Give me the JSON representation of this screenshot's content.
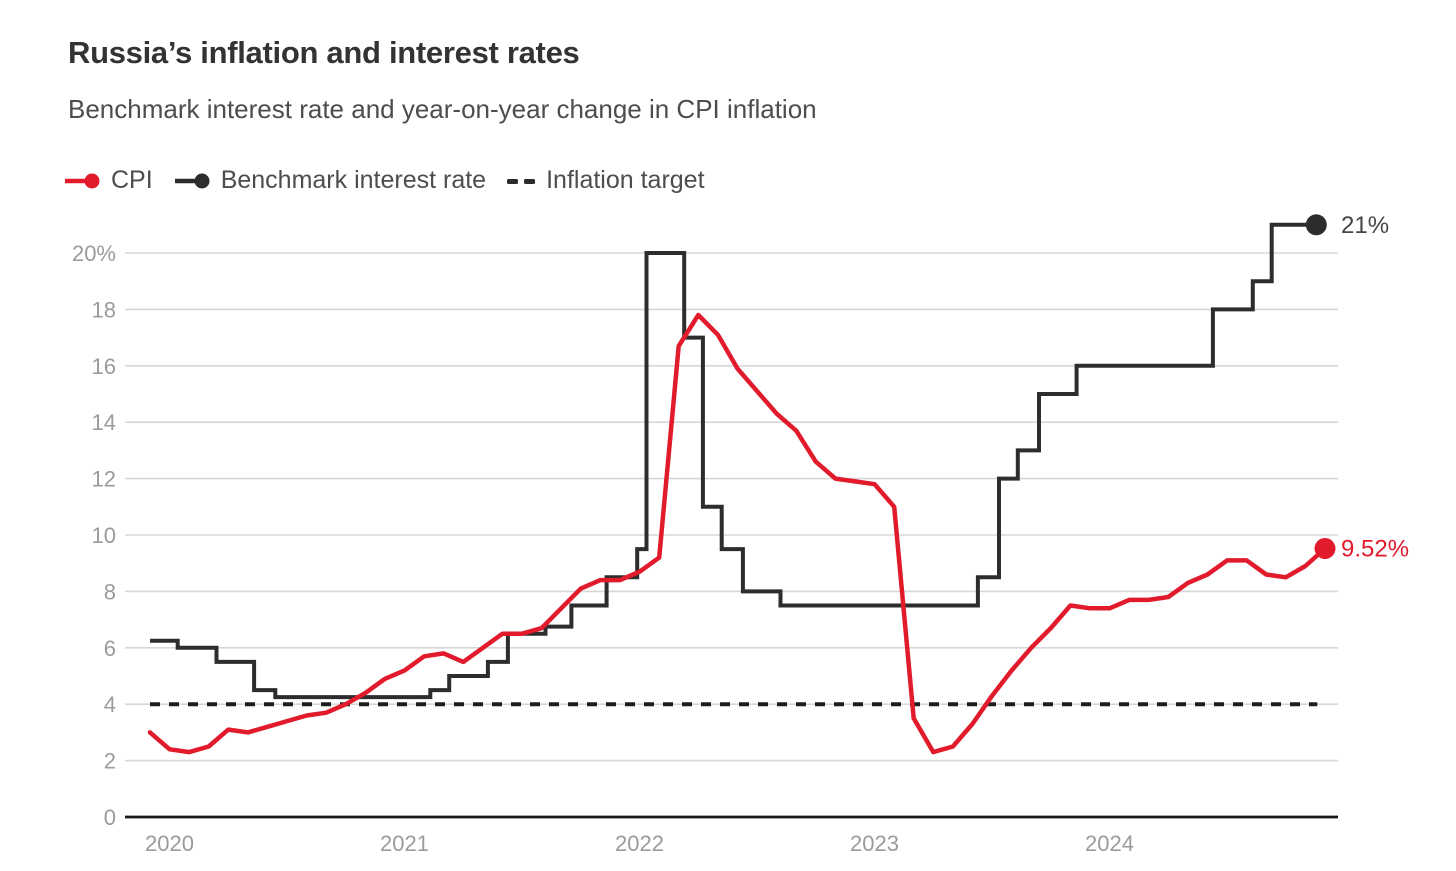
{
  "header": {
    "title": "Russia’s inflation and interest rates",
    "subtitle": "Benchmark interest rate and year-on-year change in CPI inflation"
  },
  "legend": [
    {
      "label": "CPI",
      "color": "#e11b2c",
      "style": "line-dot"
    },
    {
      "label": "Benchmark interest rate",
      "color": "#2d2d2d",
      "style": "line-dot"
    },
    {
      "label": "Inflation target",
      "color": "#2b2b2b",
      "style": "dashed"
    }
  ],
  "colors": {
    "cpi_red": "#e11b2c",
    "benchmark_black": "#2d2d2d",
    "grid": "#d7d7d7",
    "axis": "#161616",
    "tick_text": "#9b9b9b",
    "end_label_dark": "#454545"
  },
  "chart_data": {
    "type": "line",
    "title": "Russia’s inflation and interest rates",
    "subtitle": "Benchmark interest rate and year-on-year change in CPI inflation",
    "x_axis": {
      "ticks": [
        2020,
        2021,
        2022,
        2023,
        2024
      ],
      "range_decimal_years": [
        2019.9,
        2025.1
      ],
      "grid": false
    },
    "y_axis": {
      "unit": "%",
      "tick_values": [
        20,
        18,
        16,
        14,
        12,
        10,
        8,
        6,
        4,
        2,
        0
      ],
      "tick_labels": [
        "20%",
        "18",
        "16",
        "14",
        "12",
        "10",
        "8",
        "6",
        "4",
        "2",
        "0"
      ],
      "range": [
        0,
        21.5
      ],
      "grid": true
    },
    "legend_position": "top-left",
    "series": [
      {
        "name": "CPI",
        "type": "line",
        "color": "#e11b2c",
        "start_decimal_year": 2019.917,
        "interval_months": 1,
        "values": [
          3.0,
          2.4,
          2.3,
          2.5,
          3.1,
          3.0,
          3.2,
          3.4,
          3.6,
          3.7,
          4.0,
          4.4,
          4.9,
          5.2,
          5.7,
          5.8,
          5.5,
          6.0,
          6.5,
          6.5,
          6.7,
          7.4,
          8.1,
          8.4,
          8.4,
          8.7,
          9.2,
          16.7,
          17.8,
          17.1,
          15.9,
          15.1,
          14.3,
          13.7,
          12.6,
          12.0,
          11.9,
          11.8,
          11.0,
          3.5,
          2.3,
          2.5,
          3.3,
          4.3,
          5.2,
          6.0,
          6.7,
          7.5,
          7.4,
          7.4,
          7.7,
          7.7,
          7.8,
          8.3,
          8.6,
          9.1,
          9.1,
          8.6,
          8.5,
          8.9,
          9.52
        ],
        "end_value": 9.52,
        "end_label": "9.52%"
      },
      {
        "name": "Benchmark interest rate",
        "type": "step",
        "color": "#2d2d2d",
        "steps": [
          [
            2019.917,
            6.25
          ],
          [
            2020.035,
            6.0
          ],
          [
            2020.2,
            5.5
          ],
          [
            2020.36,
            4.5
          ],
          [
            2020.45,
            4.25
          ],
          [
            2021.11,
            4.5
          ],
          [
            2021.19,
            5.0
          ],
          [
            2021.355,
            5.5
          ],
          [
            2021.44,
            6.5
          ],
          [
            2021.6,
            6.75
          ],
          [
            2021.71,
            7.5
          ],
          [
            2021.86,
            8.5
          ],
          [
            2021.99,
            9.5
          ],
          [
            2022.03,
            20
          ],
          [
            2022.19,
            17
          ],
          [
            2022.27,
            11
          ],
          [
            2022.35,
            9.5
          ],
          [
            2022.44,
            8
          ],
          [
            2022.6,
            7.5
          ],
          [
            2023.44,
            8.5
          ],
          [
            2023.53,
            12
          ],
          [
            2023.61,
            13
          ],
          [
            2023.7,
            15
          ],
          [
            2023.86,
            16
          ],
          [
            2024.44,
            18
          ],
          [
            2024.61,
            19
          ],
          [
            2024.69,
            21
          ]
        ],
        "end_decimal_year": 2024.88,
        "end_value": 21,
        "end_label": "21%"
      },
      {
        "name": "Inflation target",
        "type": "horizontal-dashed",
        "color": "#1e1e1e",
        "value": 4
      }
    ]
  }
}
